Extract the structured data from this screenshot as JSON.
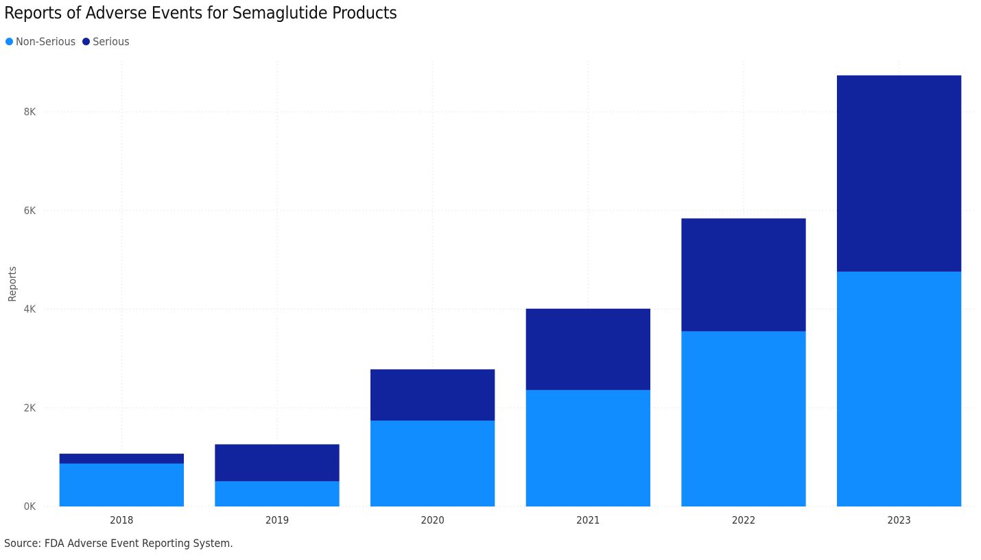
{
  "chart_data": {
    "type": "bar",
    "stacked": true,
    "title": "Reports of Adverse Events for Semaglutide Products",
    "xlabel": "",
    "ylabel": "Reports",
    "ylim": [
      0,
      8800
    ],
    "yticks": [
      0,
      2000,
      4000,
      6000,
      8000
    ],
    "ytick_labels": [
      "0K",
      "2K",
      "4K",
      "6K",
      "8K"
    ],
    "categories": [
      "2018",
      "2019",
      "2020",
      "2021",
      "2022",
      "2023"
    ],
    "series": [
      {
        "name": "Non-Serious",
        "color": "#118DFF",
        "values": [
          870,
          510,
          1740,
          2360,
          3550,
          4760
        ]
      },
      {
        "name": "Serious",
        "color": "#12239E",
        "values": [
          200,
          750,
          1040,
          1650,
          2290,
          3980
        ]
      }
    ],
    "legend_position": "top-left",
    "grid": true
  },
  "source_note": "Source: FDA Adverse Event Reporting System."
}
